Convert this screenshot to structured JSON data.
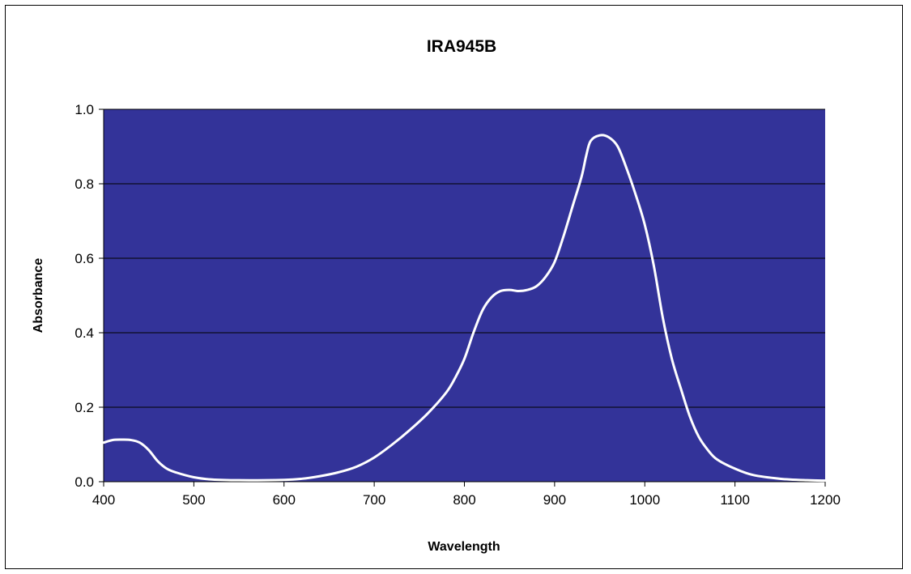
{
  "chart_data": {
    "type": "line",
    "title": "IRA945B",
    "xlabel": "Wavelength",
    "ylabel": "Absorbance",
    "xlim": [
      400,
      1200
    ],
    "ylim": [
      0.0,
      1.0
    ],
    "x_ticks": [
      "400",
      "500",
      "600",
      "700",
      "800",
      "900",
      "1000",
      "1100",
      "1200"
    ],
    "y_ticks": [
      "0.0",
      "0.2",
      "0.4",
      "0.6",
      "0.8",
      "1.0"
    ],
    "grid": "horizontal",
    "legend": "none",
    "colors": {
      "plot_bg": "#333399",
      "line": "#ffffff",
      "grid": "#000000"
    },
    "series": [
      {
        "x": [
          400,
          410,
          420,
          430,
          440,
          450,
          460,
          470,
          480,
          500,
          520,
          550,
          600,
          620,
          640,
          660,
          680,
          700,
          720,
          740,
          760,
          780,
          790,
          800,
          810,
          820,
          830,
          840,
          850,
          860,
          870,
          880,
          890,
          900,
          910,
          920,
          930,
          935,
          940,
          950,
          960,
          970,
          980,
          990,
          1000,
          1010,
          1020,
          1030,
          1040,
          1050,
          1060,
          1070,
          1080,
          1100,
          1120,
          1150,
          1180,
          1200
        ],
        "y": [
          0.105,
          0.112,
          0.113,
          0.112,
          0.105,
          0.085,
          0.055,
          0.035,
          0.025,
          0.012,
          0.006,
          0.004,
          0.005,
          0.008,
          0.015,
          0.025,
          0.04,
          0.065,
          0.1,
          0.14,
          0.185,
          0.24,
          0.28,
          0.33,
          0.4,
          0.46,
          0.495,
          0.512,
          0.515,
          0.512,
          0.515,
          0.525,
          0.55,
          0.59,
          0.66,
          0.74,
          0.82,
          0.875,
          0.915,
          0.93,
          0.925,
          0.9,
          0.84,
          0.77,
          0.69,
          0.58,
          0.44,
          0.33,
          0.25,
          0.175,
          0.12,
          0.085,
          0.06,
          0.035,
          0.018,
          0.008,
          0.004,
          0.003
        ]
      }
    ]
  }
}
